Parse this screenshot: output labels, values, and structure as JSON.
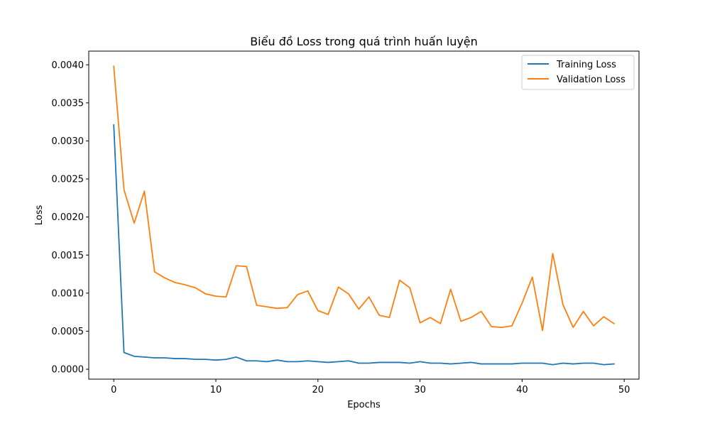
{
  "chart_data": {
    "type": "line",
    "title": "Biểu đồ Loss trong quá trình huấn luyện",
    "xlabel": "Epochs",
    "ylabel": "Loss",
    "xlim": [
      -2.45,
      51.45
    ],
    "ylim": [
      -0.00013,
      0.00418
    ],
    "xticks": [
      0,
      10,
      20,
      30,
      40,
      50
    ],
    "xtick_labels": [
      "0",
      "10",
      "20",
      "30",
      "40",
      "50"
    ],
    "yticks": [
      0.0,
      0.0005,
      0.001,
      0.0015,
      0.002,
      0.0025,
      0.003,
      0.0035,
      0.004
    ],
    "ytick_labels": [
      "0.0000",
      "0.0005",
      "0.0010",
      "0.0015",
      "0.0020",
      "0.0025",
      "0.0030",
      "0.0035",
      "0.0040"
    ],
    "grid": false,
    "legend_position": "top-right",
    "series": [
      {
        "name": "Training Loss",
        "color": "#1f77b4",
        "x": [
          0,
          1,
          2,
          3,
          4,
          5,
          6,
          7,
          8,
          9,
          10,
          11,
          12,
          13,
          14,
          15,
          16,
          17,
          18,
          19,
          20,
          21,
          22,
          23,
          24,
          25,
          26,
          27,
          28,
          29,
          30,
          31,
          32,
          33,
          34,
          35,
          36,
          37,
          38,
          39,
          40,
          41,
          42,
          43,
          44,
          45,
          46,
          47,
          48,
          49
        ],
        "y": [
          0.00321,
          0.00022,
          0.00017,
          0.00016,
          0.00015,
          0.00015,
          0.00014,
          0.00014,
          0.00013,
          0.00013,
          0.00012,
          0.00013,
          0.00016,
          0.00011,
          0.00011,
          0.0001,
          0.00012,
          0.0001,
          0.0001,
          0.00011,
          0.0001,
          9e-05,
          0.0001,
          0.00011,
          8e-05,
          8e-05,
          9e-05,
          9e-05,
          9e-05,
          8e-05,
          0.0001,
          8e-05,
          8e-05,
          7e-05,
          8e-05,
          9e-05,
          7e-05,
          7e-05,
          7e-05,
          7e-05,
          8e-05,
          8e-05,
          8e-05,
          6e-05,
          8e-05,
          7e-05,
          8e-05,
          8e-05,
          6e-05,
          7e-05
        ]
      },
      {
        "name": "Validation Loss",
        "color": "#ff7f0e",
        "x": [
          0,
          1,
          2,
          3,
          4,
          5,
          6,
          7,
          8,
          9,
          10,
          11,
          12,
          13,
          14,
          15,
          16,
          17,
          18,
          19,
          20,
          21,
          22,
          23,
          24,
          25,
          26,
          27,
          28,
          29,
          30,
          31,
          32,
          33,
          34,
          35,
          36,
          37,
          38,
          39,
          40,
          41,
          42,
          43,
          44,
          45,
          46,
          47,
          48,
          49
        ],
        "y": [
          0.00398,
          0.00236,
          0.00192,
          0.00234,
          0.00128,
          0.0012,
          0.00114,
          0.00111,
          0.00107,
          0.00099,
          0.00096,
          0.00095,
          0.00136,
          0.00135,
          0.00084,
          0.00082,
          0.0008,
          0.00081,
          0.00098,
          0.00103,
          0.00077,
          0.00072,
          0.00108,
          0.00099,
          0.00079,
          0.00095,
          0.00071,
          0.00068,
          0.00117,
          0.00107,
          0.00061,
          0.00068,
          0.0006,
          0.00105,
          0.00063,
          0.00068,
          0.00076,
          0.00056,
          0.00055,
          0.00057,
          0.00087,
          0.00121,
          0.00051,
          0.00152,
          0.00085,
          0.00055,
          0.00076,
          0.00057,
          0.00069,
          0.0006
        ]
      }
    ]
  }
}
